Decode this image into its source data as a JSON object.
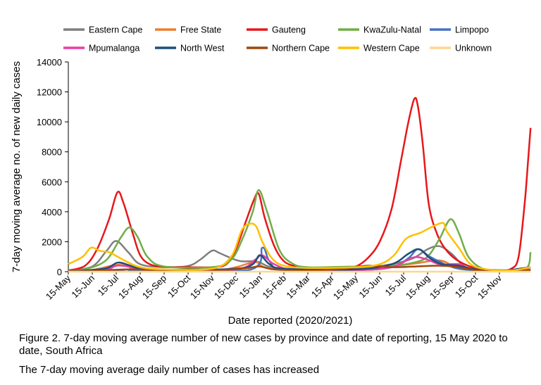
{
  "chart_data": {
    "type": "line",
    "xlabel": "Date reported (2020/2021)",
    "ylabel": "7-day moving average no. of new daily cases",
    "ylim": [
      0,
      14000
    ],
    "yticks": [
      0,
      2000,
      4000,
      6000,
      8000,
      10000,
      12000,
      14000
    ],
    "x_tick_labels": [
      "15-May",
      "15-Jun",
      "15-Jul",
      "15-Aug",
      "15-Sep",
      "15-Oct",
      "15-Nov",
      "15-Dec",
      "15-Jan",
      "15-Feb",
      "15-Mar",
      "15-Apr",
      "15-May",
      "15-Jun",
      "15-Jul",
      "15-Aug",
      "15-Sep",
      "15-Oct",
      "15-Nov"
    ],
    "x_unit": "months since 15-May-2020",
    "xlim": [
      0,
      19.3
    ],
    "grid": false,
    "legend_position": "top",
    "series": [
      {
        "name": "Eastern Cape",
        "color": "#7f7f7f",
        "points": [
          [
            0,
            50
          ],
          [
            1,
            350
          ],
          [
            1.6,
            1400
          ],
          [
            2.0,
            2050
          ],
          [
            2.5,
            1300
          ],
          [
            3,
            500
          ],
          [
            4,
            300
          ],
          [
            5,
            380
          ],
          [
            5.5,
            800
          ],
          [
            6.0,
            1400
          ],
          [
            6.3,
            1250
          ],
          [
            6.8,
            900
          ],
          [
            7.2,
            700
          ],
          [
            7.7,
            700
          ],
          [
            8,
            620
          ],
          [
            8.5,
            300
          ],
          [
            10,
            150
          ],
          [
            12,
            200
          ],
          [
            13.5,
            500
          ],
          [
            14.4,
            900
          ],
          [
            15.0,
            1500
          ],
          [
            15.5,
            1700
          ],
          [
            16,
            1200
          ],
          [
            16.6,
            300
          ],
          [
            17.5,
            80
          ],
          [
            19.3,
            130
          ]
        ]
      },
      {
        "name": "Free State",
        "color": "#ed7d31",
        "points": [
          [
            0,
            20
          ],
          [
            1,
            120
          ],
          [
            2,
            450
          ],
          [
            2.5,
            350
          ],
          [
            3,
            120
          ],
          [
            6,
            80
          ],
          [
            7,
            300
          ],
          [
            7.8,
            650
          ],
          [
            8.3,
            250
          ],
          [
            10,
            60
          ],
          [
            12,
            150
          ],
          [
            13.5,
            350
          ],
          [
            14.5,
            550
          ],
          [
            15.5,
            750
          ],
          [
            16.2,
            350
          ],
          [
            17.5,
            60
          ],
          [
            19.3,
            150
          ]
        ]
      },
      {
        "name": "Gauteng",
        "color": "#e8171b",
        "points": [
          [
            0,
            80
          ],
          [
            0.7,
            400
          ],
          [
            1.2,
            1500
          ],
          [
            1.7,
            3500
          ],
          [
            2.05,
            5300
          ],
          [
            2.3,
            4600
          ],
          [
            2.7,
            2500
          ],
          [
            3,
            1100
          ],
          [
            3.4,
            500
          ],
          [
            4,
            330
          ],
          [
            5,
            300
          ],
          [
            6,
            300
          ],
          [
            6.6,
            500
          ],
          [
            7,
            1500
          ],
          [
            7.4,
            3300
          ],
          [
            7.75,
            4800
          ],
          [
            7.95,
            5200
          ],
          [
            8.2,
            3600
          ],
          [
            8.6,
            1700
          ],
          [
            9,
            700
          ],
          [
            9.5,
            350
          ],
          [
            10,
            250
          ],
          [
            11,
            250
          ],
          [
            11.5,
            300
          ],
          [
            12,
            350
          ],
          [
            12.5,
            900
          ],
          [
            13,
            2000
          ],
          [
            13.5,
            4200
          ],
          [
            13.9,
            7500
          ],
          [
            14.2,
            10000
          ],
          [
            14.45,
            11550
          ],
          [
            14.6,
            11000
          ],
          [
            14.8,
            8500
          ],
          [
            15.05,
            4500
          ],
          [
            15.4,
            2500
          ],
          [
            15.8,
            1400
          ],
          [
            16.3,
            700
          ],
          [
            17,
            250
          ],
          [
            18,
            100
          ],
          [
            18.5,
            200
          ],
          [
            18.8,
            1000
          ],
          [
            19.05,
            4500
          ],
          [
            19.2,
            7500
          ],
          [
            19.3,
            9600
          ]
        ]
      },
      {
        "name": "KwaZulu-Natal",
        "color": "#70ad47",
        "points": [
          [
            0,
            30
          ],
          [
            0.8,
            200
          ],
          [
            1.6,
            800
          ],
          [
            2.2,
            2300
          ],
          [
            2.55,
            2950
          ],
          [
            2.9,
            2300
          ],
          [
            3.3,
            1000
          ],
          [
            4,
            350
          ],
          [
            6,
            300
          ],
          [
            6.8,
            800
          ],
          [
            7.3,
            2300
          ],
          [
            7.7,
            4000
          ],
          [
            7.95,
            5450
          ],
          [
            8.3,
            4000
          ],
          [
            8.8,
            1500
          ],
          [
            9.3,
            600
          ],
          [
            10,
            300
          ],
          [
            12,
            350
          ],
          [
            13.5,
            400
          ],
          [
            14.4,
            600
          ],
          [
            15.0,
            1000
          ],
          [
            15.5,
            2200
          ],
          [
            15.95,
            3500
          ],
          [
            16.3,
            2600
          ],
          [
            16.7,
            1000
          ],
          [
            17.3,
            200
          ],
          [
            18,
            100
          ],
          [
            19.1,
            200
          ],
          [
            19.3,
            1300
          ]
        ]
      },
      {
        "name": "Limpopo",
        "color": "#4472c4",
        "points": [
          [
            0,
            10
          ],
          [
            2,
            80
          ],
          [
            2.5,
            150
          ],
          [
            3,
            80
          ],
          [
            7.5,
            100
          ],
          [
            8.1,
            1600
          ],
          [
            8.4,
            700
          ],
          [
            9,
            150
          ],
          [
            12,
            100
          ],
          [
            13.5,
            300
          ],
          [
            14.2,
            900
          ],
          [
            14.6,
            1500
          ],
          [
            15.1,
            1000
          ],
          [
            15.8,
            450
          ],
          [
            16.5,
            150
          ],
          [
            18,
            40
          ],
          [
            19.3,
            150
          ]
        ]
      },
      {
        "name": "Mpumalanga",
        "color": "#e83ea6",
        "points": [
          [
            0,
            10
          ],
          [
            1.5,
            100
          ],
          [
            2,
            400
          ],
          [
            2.5,
            350
          ],
          [
            3,
            150
          ],
          [
            4,
            80
          ],
          [
            7,
            150
          ],
          [
            7.8,
            800
          ],
          [
            8.1,
            1100
          ],
          [
            8.6,
            500
          ],
          [
            9.5,
            100
          ],
          [
            12,
            100
          ],
          [
            13.5,
            300
          ],
          [
            14.4,
            950
          ],
          [
            15.0,
            800
          ],
          [
            15.5,
            500
          ],
          [
            16.3,
            500
          ],
          [
            16.8,
            200
          ],
          [
            18,
            40
          ],
          [
            19.3,
            150
          ]
        ]
      },
      {
        "name": "North West",
        "color": "#1f4e79",
        "points": [
          [
            0,
            10
          ],
          [
            1.5,
            200
          ],
          [
            2.05,
            600
          ],
          [
            2.5,
            450
          ],
          [
            3,
            200
          ],
          [
            4,
            100
          ],
          [
            7,
            200
          ],
          [
            7.7,
            500
          ],
          [
            8.0,
            1100
          ],
          [
            8.4,
            500
          ],
          [
            9,
            200
          ],
          [
            12,
            150
          ],
          [
            13.5,
            500
          ],
          [
            14.2,
            1200
          ],
          [
            14.65,
            1500
          ],
          [
            15.1,
            900
          ],
          [
            15.6,
            500
          ],
          [
            16.3,
            400
          ],
          [
            17,
            150
          ],
          [
            18,
            40
          ],
          [
            19.3,
            300
          ]
        ]
      },
      {
        "name": "Northern Cape",
        "color": "#9e480e",
        "points": [
          [
            0,
            10
          ],
          [
            1,
            50
          ],
          [
            2.5,
            150
          ],
          [
            4,
            100
          ],
          [
            5,
            150
          ],
          [
            6.5,
            120
          ],
          [
            7.5,
            250
          ],
          [
            8.0,
            350
          ],
          [
            8.6,
            150
          ],
          [
            10,
            80
          ],
          [
            11.5,
            200
          ],
          [
            12.5,
            400
          ],
          [
            13.5,
            300
          ],
          [
            14.5,
            350
          ],
          [
            15.5,
            400
          ],
          [
            16.3,
            300
          ],
          [
            17,
            100
          ],
          [
            18,
            40
          ],
          [
            19.3,
            100
          ]
        ]
      },
      {
        "name": "Western Cape",
        "color": "#ffc000",
        "points": [
          [
            0,
            500
          ],
          [
            0.6,
            1000
          ],
          [
            0.95,
            1600
          ],
          [
            1.3,
            1400
          ],
          [
            1.7,
            1300
          ],
          [
            2.0,
            1050
          ],
          [
            2.4,
            700
          ],
          [
            3,
            300
          ],
          [
            4,
            150
          ],
          [
            6,
            200
          ],
          [
            6.8,
            1000
          ],
          [
            7.25,
            2800
          ],
          [
            7.6,
            3200
          ],
          [
            7.85,
            3000
          ],
          [
            8.1,
            2000
          ],
          [
            8.5,
            900
          ],
          [
            9,
            400
          ],
          [
            10,
            250
          ],
          [
            12,
            300
          ],
          [
            13,
            500
          ],
          [
            13.6,
            1100
          ],
          [
            14.1,
            2200
          ],
          [
            14.7,
            2600
          ],
          [
            15.2,
            3000
          ],
          [
            15.65,
            3250
          ],
          [
            15.8,
            2700
          ],
          [
            16.3,
            1600
          ],
          [
            16.8,
            500
          ],
          [
            17.5,
            150
          ],
          [
            18.5,
            80
          ],
          [
            19.3,
            300
          ]
        ]
      },
      {
        "name": "Unknown",
        "color": "#ffd68f",
        "points": [
          [
            0,
            0
          ],
          [
            19.3,
            0
          ]
        ]
      }
    ]
  }
}
